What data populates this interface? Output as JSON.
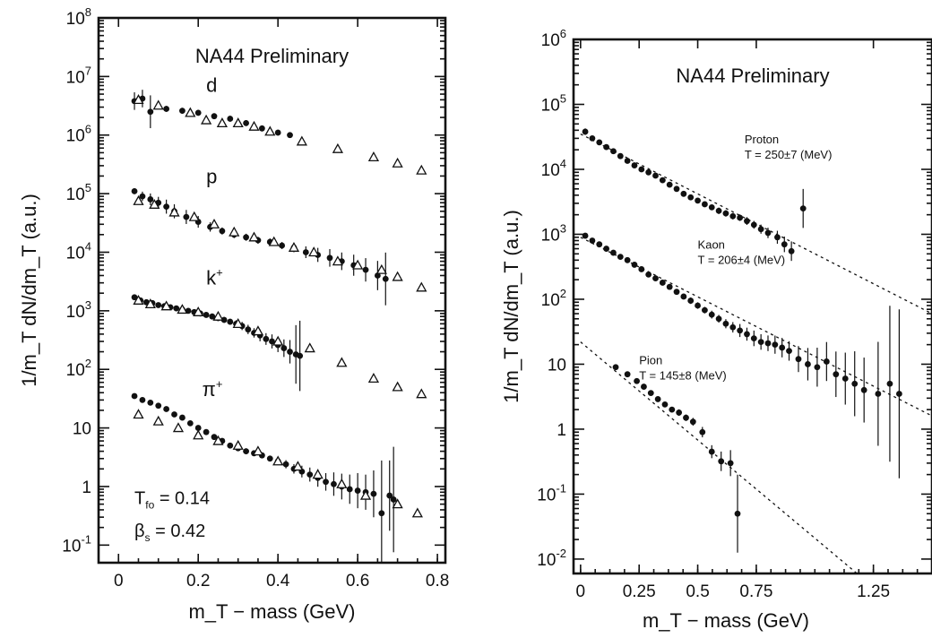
{
  "chart_data": [
    {
      "type": "scatter",
      "title": "NA44 Preliminary",
      "xlabel": "m_T − mass (GeV)",
      "ylabel": "1/m_T dN/dm_T (a.u.)",
      "y_scale": "log",
      "xlim": [
        -0.05,
        0.82
      ],
      "ylim": [
        0.05,
        100000000
      ],
      "x_ticks": [
        0,
        0.2,
        0.4,
        0.6,
        0.8
      ],
      "x_tick_labels": [
        "0",
        "0.2",
        "0.4",
        "0.6",
        "0.8"
      ],
      "y_ticks": [
        {
          "value": 0.1,
          "base": "10",
          "exp": "-1"
        },
        {
          "value": 1,
          "base": "1",
          "exp": ""
        },
        {
          "value": 10,
          "base": "10",
          "exp": ""
        },
        {
          "value": 100,
          "base": "10",
          "exp": "2"
        },
        {
          "value": 1000,
          "base": "10",
          "exp": "3"
        },
        {
          "value": 10000,
          "base": "10",
          "exp": "4"
        },
        {
          "value": 100000,
          "base": "10",
          "exp": "5"
        },
        {
          "value": 1000000,
          "base": "10",
          "exp": "6"
        },
        {
          "value": 10000000,
          "base": "10",
          "exp": "7"
        },
        {
          "value": 100000000,
          "base": "10",
          "exp": "8"
        }
      ],
      "series": [
        {
          "name": "d",
          "label": {
            "text": "d",
            "sup": "",
            "x": 0.22,
            "y": 5500000
          },
          "marker": "dot",
          "x": [
            0.04,
            0.06,
            0.08,
            0.12,
            0.16,
            0.2,
            0.24,
            0.28,
            0.32,
            0.36,
            0.4,
            0.43
          ],
          "y": [
            3800000,
            4200000,
            2500000,
            2800000,
            2600000,
            2400000,
            2100000,
            1900000,
            1600000,
            1300000,
            1100000,
            1000000
          ],
          "err": [
            0.15,
            0.15,
            0.28,
            0.05,
            0.05,
            0.05,
            0.05,
            0.05,
            0.05,
            0.05,
            0.05,
            0.05
          ]
        },
        {
          "name": "d",
          "marker": "triangle",
          "x": [
            0.05,
            0.1,
            0.18,
            0.22,
            0.26,
            0.3,
            0.34,
            0.38,
            0.46,
            0.55,
            0.64,
            0.7,
            0.76
          ],
          "y": [
            4000000,
            3200000,
            2400000,
            1800000,
            1600000,
            1600000,
            1400000,
            1150000,
            780000,
            580000,
            420000,
            330000,
            250000
          ]
        },
        {
          "name": "p",
          "label": {
            "text": "p",
            "sup": "",
            "x": 0.22,
            "y": 150000
          },
          "marker": "dot",
          "x": [
            0.04,
            0.06,
            0.08,
            0.1,
            0.12,
            0.14,
            0.17,
            0.2,
            0.23,
            0.26,
            0.29,
            0.32,
            0.35,
            0.38,
            0.41,
            0.44,
            0.47,
            0.5,
            0.53,
            0.56,
            0.59,
            0.62,
            0.65,
            0.67
          ],
          "y": [
            110000,
            90000,
            80000,
            70000,
            60000,
            50000,
            40000,
            33000,
            27000,
            23000,
            20000,
            18000,
            16000,
            15000,
            13000,
            12000,
            10000,
            9000,
            8000,
            7000,
            6000,
            5000,
            4000,
            3500
          ],
          "err": [
            0.05,
            0.08,
            0.1,
            0.1,
            0.12,
            0.12,
            0.12,
            0.1,
            0.08,
            0.06,
            0.06,
            0.06,
            0.06,
            0.06,
            0.06,
            0.08,
            0.1,
            0.12,
            0.15,
            0.15,
            0.18,
            0.2,
            0.25,
            0.45
          ]
        },
        {
          "name": "p",
          "marker": "triangle",
          "x": [
            0.05,
            0.09,
            0.14,
            0.19,
            0.24,
            0.29,
            0.34,
            0.39,
            0.44,
            0.49,
            0.55,
            0.6,
            0.66,
            0.7,
            0.76
          ],
          "y": [
            75000,
            65000,
            48000,
            40000,
            30000,
            22000,
            18000,
            15000,
            12000,
            10000,
            7000,
            6000,
            5000,
            3800,
            2500
          ]
        },
        {
          "name": "k+",
          "label": {
            "text": "k",
            "sup": "+",
            "x": 0.22,
            "y": 2800
          },
          "marker": "dot",
          "x": [
            0.04,
            0.055,
            0.07,
            0.085,
            0.1,
            0.115,
            0.13,
            0.145,
            0.16,
            0.175,
            0.19,
            0.205,
            0.22,
            0.235,
            0.25,
            0.265,
            0.28,
            0.295,
            0.31,
            0.325,
            0.34,
            0.355,
            0.37,
            0.385,
            0.4,
            0.415,
            0.43,
            0.445,
            0.455
          ],
          "y": [
            1700,
            1500,
            1400,
            1350,
            1250,
            1200,
            1150,
            1100,
            1050,
            1000,
            950,
            900,
            850,
            800,
            750,
            700,
            650,
            600,
            550,
            480,
            420,
            380,
            330,
            300,
            260,
            230,
            200,
            180,
            170
          ],
          "err": [
            0.04,
            0.04,
            0.04,
            0.04,
            0.04,
            0.04,
            0.04,
            0.04,
            0.04,
            0.04,
            0.04,
            0.04,
            0.04,
            0.05,
            0.05,
            0.05,
            0.05,
            0.06,
            0.07,
            0.08,
            0.08,
            0.1,
            0.1,
            0.12,
            0.12,
            0.15,
            0.2,
            0.5,
            0.6
          ]
        },
        {
          "name": "k+",
          "marker": "triangle",
          "x": [
            0.05,
            0.08,
            0.12,
            0.16,
            0.2,
            0.25,
            0.3,
            0.35,
            0.4,
            0.48,
            0.56,
            0.64,
            0.7,
            0.76
          ],
          "y": [
            1500,
            1300,
            1200,
            1050,
            950,
            800,
            600,
            450,
            300,
            230,
            130,
            70,
            50,
            38
          ]
        },
        {
          "name": "π+",
          "label": {
            "text": "π",
            "sup": "+",
            "x": 0.21,
            "y": 35
          },
          "marker": "dot",
          "x": [
            0.04,
            0.06,
            0.08,
            0.1,
            0.12,
            0.14,
            0.16,
            0.18,
            0.2,
            0.22,
            0.24,
            0.26,
            0.28,
            0.3,
            0.32,
            0.34,
            0.36,
            0.38,
            0.4,
            0.42,
            0.44,
            0.46,
            0.48,
            0.5,
            0.52,
            0.54,
            0.56,
            0.58,
            0.6,
            0.62,
            0.64,
            0.66,
            0.68,
            0.69
          ],
          "y": [
            35,
            30,
            27,
            24,
            21,
            17,
            15,
            12,
            10,
            8.5,
            7,
            6,
            5,
            4.5,
            4,
            3.7,
            3.4,
            3,
            2.7,
            2.4,
            2,
            1.8,
            1.6,
            1.4,
            1.2,
            1.1,
            1,
            0.9,
            0.85,
            0.8,
            0.75,
            0.35,
            0.7,
            0.6
          ],
          "err": [
            0.03,
            0.03,
            0.03,
            0.03,
            0.03,
            0.03,
            0.03,
            0.03,
            0.04,
            0.04,
            0.04,
            0.04,
            0.04,
            0.05,
            0.05,
            0.05,
            0.05,
            0.05,
            0.06,
            0.07,
            0.08,
            0.1,
            0.12,
            0.15,
            0.15,
            0.2,
            0.22,
            0.25,
            0.3,
            0.3,
            0.4,
            0.9,
            0.6,
            0.9
          ]
        },
        {
          "name": "π+",
          "marker": "triangle",
          "x": [
            0.05,
            0.1,
            0.15,
            0.2,
            0.25,
            0.3,
            0.35,
            0.4,
            0.45,
            0.5,
            0.56,
            0.62,
            0.7,
            0.75
          ],
          "y": [
            17,
            13,
            10,
            7.5,
            6,
            5,
            4,
            2.7,
            2.2,
            1.6,
            1.1,
            0.7,
            0.5,
            0.35
          ]
        }
      ],
      "annotations": [
        {
          "text": "T",
          "sub": "fo",
          "rest": " = 0.14",
          "x": 0.04,
          "y": 0.5
        },
        {
          "text": "β",
          "sub": "s",
          "rest": " = 0.42",
          "x": 0.04,
          "y": 0.14
        }
      ]
    },
    {
      "type": "scatter",
      "title": "NA44 Preliminary",
      "xlabel": "m_T − mass (GeV)",
      "ylabel": "1/m_T dN/dm_T (a.u.)",
      "y_scale": "log",
      "xlim": [
        -0.03,
        1.5
      ],
      "ylim": [
        0.006,
        1000000
      ],
      "x_ticks": [
        0,
        0.25,
        0.5,
        0.75,
        1.25
      ],
      "x_tick_labels": [
        "0",
        "0.25",
        "0.5",
        "0.75",
        "1.25"
      ],
      "y_ticks": [
        {
          "value": 0.01,
          "base": "10",
          "exp": "-2"
        },
        {
          "value": 0.1,
          "base": "10",
          "exp": "-1"
        },
        {
          "value": 1,
          "base": "1",
          "exp": ""
        },
        {
          "value": 10,
          "base": "10",
          "exp": ""
        },
        {
          "value": 100,
          "base": "10",
          "exp": "2"
        },
        {
          "value": 1000,
          "base": "10",
          "exp": "3"
        },
        {
          "value": 10000,
          "base": "10",
          "exp": "4"
        },
        {
          "value": 100000,
          "base": "10",
          "exp": "5"
        },
        {
          "value": 1000000,
          "base": "10",
          "exp": "6"
        }
      ],
      "series": [
        {
          "name": "Proton",
          "marker": "dot",
          "label": {
            "line1": "Proton",
            "line2": "T = 250±7 (MeV)",
            "x": 0.7,
            "y": 25000
          },
          "fit": {
            "x0": 0.0,
            "y0": 35000,
            "x1": 1.5,
            "y1": 60
          },
          "x": [
            0.02,
            0.05,
            0.08,
            0.11,
            0.14,
            0.17,
            0.2,
            0.23,
            0.26,
            0.29,
            0.32,
            0.35,
            0.38,
            0.41,
            0.44,
            0.47,
            0.5,
            0.53,
            0.56,
            0.59,
            0.62,
            0.65,
            0.68,
            0.71,
            0.74,
            0.77,
            0.8,
            0.84,
            0.87,
            0.9
          ],
          "y": [
            38000,
            30000,
            26000,
            22000,
            19000,
            16000,
            13500,
            11500,
            10000,
            9000,
            8000,
            6800,
            5800,
            5000,
            4200,
            3700,
            3300,
            2900,
            2600,
            2300,
            2100,
            1900,
            1800,
            1600,
            1400,
            1200,
            1050,
            900,
            700,
            550
          ],
          "err": [
            0.05,
            0.04,
            0.04,
            0.04,
            0.04,
            0.04,
            0.04,
            0.04,
            0.04,
            0.04,
            0.04,
            0.04,
            0.04,
            0.04,
            0.04,
            0.04,
            0.04,
            0.04,
            0.04,
            0.05,
            0.05,
            0.05,
            0.05,
            0.06,
            0.06,
            0.07,
            0.08,
            0.1,
            0.12,
            0.15
          ]
        },
        {
          "name": "Proton",
          "marker": "dot",
          "x": [
            0.95
          ],
          "y": [
            2500
          ],
          "err": [
            0.3
          ]
        },
        {
          "name": "Kaon",
          "marker": "dot",
          "label": {
            "line1": "Kaon",
            "line2": "T = 206±4 (MeV)",
            "x": 0.5,
            "y": 600
          },
          "fit": {
            "x0": 0.0,
            "y0": 900,
            "x1": 1.5,
            "y1": 1.6
          },
          "x": [
            0.02,
            0.05,
            0.08,
            0.11,
            0.14,
            0.17,
            0.2,
            0.23,
            0.26,
            0.29,
            0.32,
            0.35,
            0.38,
            0.41,
            0.44,
            0.47,
            0.5,
            0.53,
            0.56,
            0.59,
            0.62,
            0.65,
            0.68,
            0.71,
            0.74,
            0.77,
            0.8,
            0.83,
            0.86,
            0.89,
            0.93,
            0.97,
            1.01,
            1.05,
            1.09,
            1.13,
            1.17,
            1.21,
            1.27,
            1.32,
            1.36
          ],
          "y": [
            950,
            800,
            700,
            600,
            520,
            450,
            400,
            340,
            290,
            240,
            210,
            180,
            155,
            130,
            110,
            95,
            80,
            68,
            58,
            50,
            42,
            37,
            33,
            29,
            25,
            22,
            21,
            20,
            18,
            16,
            12,
            10,
            9,
            11,
            7,
            6,
            5,
            4,
            3.5,
            5,
            3.5
          ],
          "err": [
            0.03,
            0.03,
            0.03,
            0.03,
            0.03,
            0.03,
            0.03,
            0.03,
            0.03,
            0.03,
            0.03,
            0.04,
            0.04,
            0.04,
            0.04,
            0.05,
            0.05,
            0.05,
            0.06,
            0.06,
            0.07,
            0.08,
            0.1,
            0.1,
            0.12,
            0.12,
            0.12,
            0.14,
            0.15,
            0.15,
            0.2,
            0.25,
            0.3,
            0.3,
            0.35,
            0.4,
            0.5,
            0.5,
            0.8,
            1.2,
            1.3
          ]
        },
        {
          "name": "Pion",
          "marker": "dot",
          "label": {
            "line1": "Pion",
            "line2": "T = 145±8 (MeV)",
            "x": 0.25,
            "y": 10
          },
          "fit": {
            "x0": 0.0,
            "y0": 22,
            "x1": 1.18,
            "y1": 0.006
          },
          "x": [
            0.15,
            0.2,
            0.24,
            0.27,
            0.3,
            0.33,
            0.36,
            0.39,
            0.42,
            0.45,
            0.48,
            0.52,
            0.56,
            0.6,
            0.64,
            0.67
          ],
          "y": [
            9,
            7,
            5.5,
            4.5,
            3.6,
            2.9,
            2.4,
            2.0,
            1.8,
            1.5,
            1.3,
            0.9,
            0.45,
            0.32,
            0.3,
            0.05
          ],
          "err": [
            0.04,
            0.04,
            0.04,
            0.04,
            0.04,
            0.04,
            0.04,
            0.04,
            0.05,
            0.05,
            0.06,
            0.08,
            0.1,
            0.15,
            0.2,
            0.6
          ]
        }
      ],
      "annotations": []
    }
  ]
}
